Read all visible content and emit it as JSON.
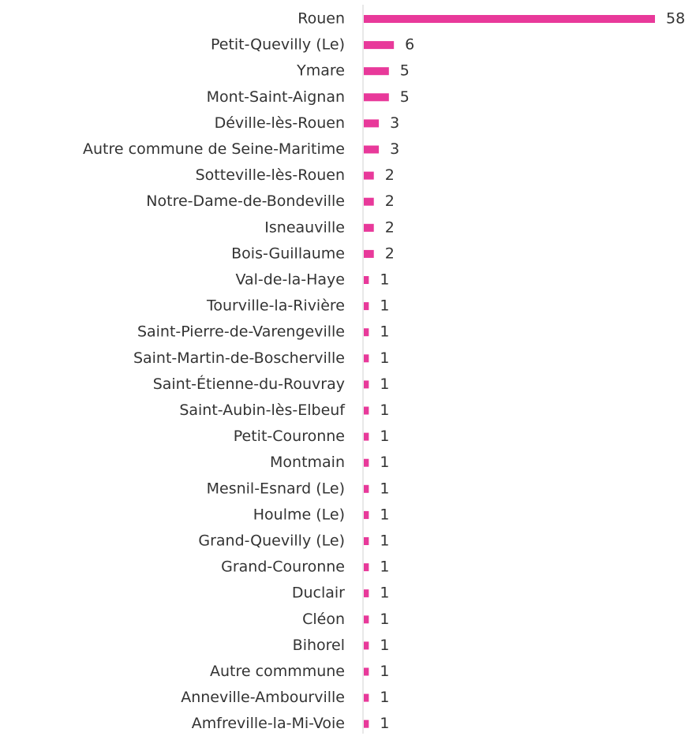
{
  "chart_data": {
    "type": "bar",
    "orientation": "horizontal",
    "color": "#e8399a",
    "categories": [
      "Rouen",
      "Petit-Quevilly (Le)",
      "Ymare",
      "Mont-Saint-Aignan",
      "Déville-lès-Rouen",
      "Autre commune de Seine-Maritime",
      "Sotteville-lès-Rouen",
      "Notre-Dame-de-Bondeville",
      "Isneauville",
      "Bois-Guillaume",
      "Val-de-la-Haye",
      "Tourville-la-Rivière",
      "Saint-Pierre-de-Varengeville",
      "Saint-Martin-de-Boscherville",
      "Saint-Étienne-du-Rouvray",
      "Saint-Aubin-lès-Elbeuf",
      "Petit-Couronne",
      "Montmain",
      "Mesnil-Esnard (Le)",
      "Houlme (Le)",
      "Grand-Quevilly (Le)",
      "Grand-Couronne",
      "Duclair",
      "Cléon",
      "Bihorel",
      "Autre commmune",
      "Anneville-Ambourville",
      "Amfreville-la-Mi-Voie"
    ],
    "values": [
      58,
      6,
      5,
      5,
      3,
      3,
      2,
      2,
      2,
      2,
      1,
      1,
      1,
      1,
      1,
      1,
      1,
      1,
      1,
      1,
      1,
      1,
      1,
      1,
      1,
      1,
      1,
      1
    ]
  }
}
